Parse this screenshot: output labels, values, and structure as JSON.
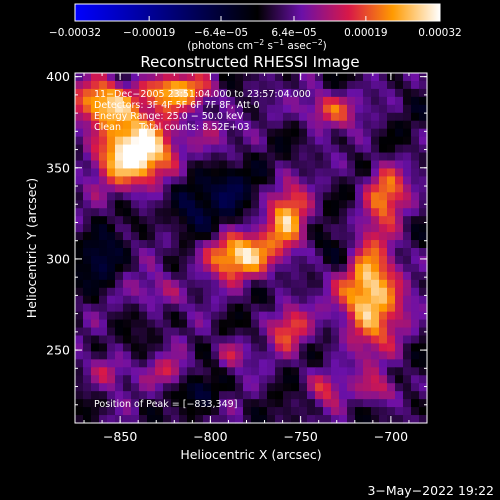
{
  "chart_data": {
    "type": "heatmap",
    "title": "Reconstructed RHESSI Image",
    "xlabel": "Heliocentric X (arcsec)",
    "ylabel": "Heliocentric Y (arcsec)",
    "xlim": [
      -875,
      -680
    ],
    "ylim": [
      210,
      402
    ],
    "x_ticks": [
      -850,
      -800,
      -750,
      -700
    ],
    "y_ticks": [
      250,
      300,
      350,
      400
    ],
    "x_tick_labels": [
      "−850",
      "−800",
      "−750",
      "−700"
    ],
    "y_tick_labels": [
      "250",
      "300",
      "350",
      "400"
    ],
    "colorbar": {
      "ticks": [
        -0.00032,
        -0.00019,
        -6.4e-05,
        6.4e-05,
        0.00019,
        0.00032
      ],
      "tick_labels": [
        "−0.00032",
        "−0.00019",
        "−6.4e−05",
        "6.4e−05",
        "0.00019",
        "0.00032"
      ],
      "units_parts": [
        "(photons cm",
        "−2",
        " s",
        "−1",
        " asec",
        "−2",
        ")"
      ],
      "range": [
        -0.00032,
        0.00032
      ]
    },
    "annotations": [
      "11−Dec−2005 23:51:04.000 to 23:57:04.000",
      "Detectors: 3F 4F 5F 6F 7F 8F, Att 0",
      "Energy Range: 25.0 − 50.0 keV",
      "Clean      Total counts: 8.52E+03"
    ],
    "peak_label": "Position of Peak = [−833,349]",
    "blobs": [
      {
        "x": -840,
        "y": 358,
        "amp": 0.00032,
        "sx": 16,
        "sy": 13
      },
      {
        "x": -858,
        "y": 385,
        "amp": 0.00026,
        "sx": 12,
        "sy": 9
      },
      {
        "x": -818,
        "y": 392,
        "amp": 0.00022,
        "sx": 14,
        "sy": 7
      },
      {
        "x": -800,
        "y": 370,
        "amp": 8e-05,
        "sx": 9,
        "sy": 8
      },
      {
        "x": -785,
        "y": 302,
        "amp": 0.00025,
        "sx": 15,
        "sy": 9
      },
      {
        "x": -757,
        "y": 322,
        "amp": 0.00021,
        "sx": 8,
        "sy": 13
      },
      {
        "x": -712,
        "y": 282,
        "amp": 0.00029,
        "sx": 12,
        "sy": 21
      },
      {
        "x": -703,
        "y": 337,
        "amp": 0.00019,
        "sx": 8,
        "sy": 11
      },
      {
        "x": -735,
        "y": 382,
        "amp": 0.00017,
        "sx": 11,
        "sy": 7
      },
      {
        "x": -757,
        "y": 262,
        "amp": 0.00015,
        "sx": 8,
        "sy": 9
      },
      {
        "x": -828,
        "y": 282,
        "amp": 0.00011,
        "sx": 10,
        "sy": 7
      },
      {
        "x": -788,
        "y": 248,
        "amp": 0.00012,
        "sx": 7,
        "sy": 6
      },
      {
        "x": -857,
        "y": 238,
        "amp": 0.00013,
        "sx": 8,
        "sy": 7
      },
      {
        "x": -822,
        "y": 238,
        "amp": 0.00011,
        "sx": 8,
        "sy": 6
      },
      {
        "x": -737,
        "y": 230,
        "amp": 0.00013,
        "sx": 7,
        "sy": 7
      },
      {
        "x": -705,
        "y": 228,
        "amp": 0.00012,
        "sx": 8,
        "sy": 6
      },
      {
        "x": -810,
        "y": 330,
        "amp": -0.00012,
        "sx": 9,
        "sy": 14
      },
      {
        "x": -790,
        "y": 340,
        "amp": -0.0001,
        "sx": 8,
        "sy": 10
      },
      {
        "x": -726,
        "y": 302,
        "amp": -0.00012,
        "sx": 8,
        "sy": 9
      },
      {
        "x": -860,
        "y": 298,
        "amp": -9e-05,
        "sx": 8,
        "sy": 10
      },
      {
        "x": -805,
        "y": 228,
        "amp": -8e-05,
        "sx": 8,
        "sy": 6
      }
    ]
  },
  "footer": {
    "date": "3−May−2022 19:22"
  }
}
